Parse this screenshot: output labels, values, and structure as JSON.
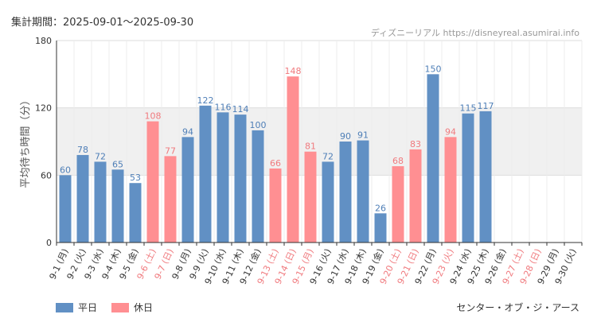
{
  "header": {
    "period_label": "集計期間：2025-09-01～2025-09-30",
    "source_label": "ディズニーリアル https://disneyreal.asumirai.info",
    "venue_label": "センター・オブ・ジ・アース"
  },
  "colors": {
    "weekday": "#6190c4",
    "holiday": "#ff8f92",
    "weekday_label": "#4f7fb7",
    "holiday_label": "#f07a7e",
    "grid": "#dddddd",
    "band": "#f0f0f0",
    "axis": "#333333",
    "tick_text": "#333333"
  },
  "chart_data": {
    "type": "bar",
    "title": "",
    "xlabel": "",
    "ylabel": "平均待ち時間（分）",
    "ylim": [
      0,
      180
    ],
    "yticks": [
      0,
      60,
      120,
      180
    ],
    "legend": [
      {
        "key": "weekday",
        "label": "平日"
      },
      {
        "key": "holiday",
        "label": "休日"
      }
    ],
    "categories": [
      "9-1 (月)",
      "9-2 (火)",
      "9-3 (水)",
      "9-4 (木)",
      "9-5 (金)",
      "9-6 (土)",
      "9-7 (日)",
      "9-8 (月)",
      "9-9 (火)",
      "9-10 (水)",
      "9-11 (木)",
      "9-12 (金)",
      "9-13 (土)",
      "9-14 (日)",
      "9-15 (月)",
      "9-16 (火)",
      "9-17 (水)",
      "9-18 (木)",
      "9-19 (金)",
      "9-20 (土)",
      "9-21 (日)",
      "9-22 (月)",
      "9-23 (火)",
      "9-24 (水)",
      "9-25 (木)",
      "9-26 (金)",
      "9-27 (土)",
      "9-28 (日)",
      "9-29 (月)",
      "9-30 (火)"
    ],
    "values": [
      60,
      78,
      72,
      65,
      53,
      108,
      77,
      94,
      122,
      116,
      114,
      100,
      66,
      148,
      81,
      72,
      90,
      91,
      26,
      68,
      83,
      150,
      94,
      115,
      117,
      null,
      null,
      null,
      null,
      null
    ],
    "day_type": [
      "weekday",
      "weekday",
      "weekday",
      "weekday",
      "weekday",
      "holiday",
      "holiday",
      "weekday",
      "weekday",
      "weekday",
      "weekday",
      "weekday",
      "holiday",
      "holiday",
      "holiday",
      "weekday",
      "weekday",
      "weekday",
      "weekday",
      "holiday",
      "holiday",
      "weekday",
      "holiday",
      "weekday",
      "weekday",
      "weekday",
      "holiday",
      "holiday",
      "weekday",
      "weekday"
    ]
  }
}
